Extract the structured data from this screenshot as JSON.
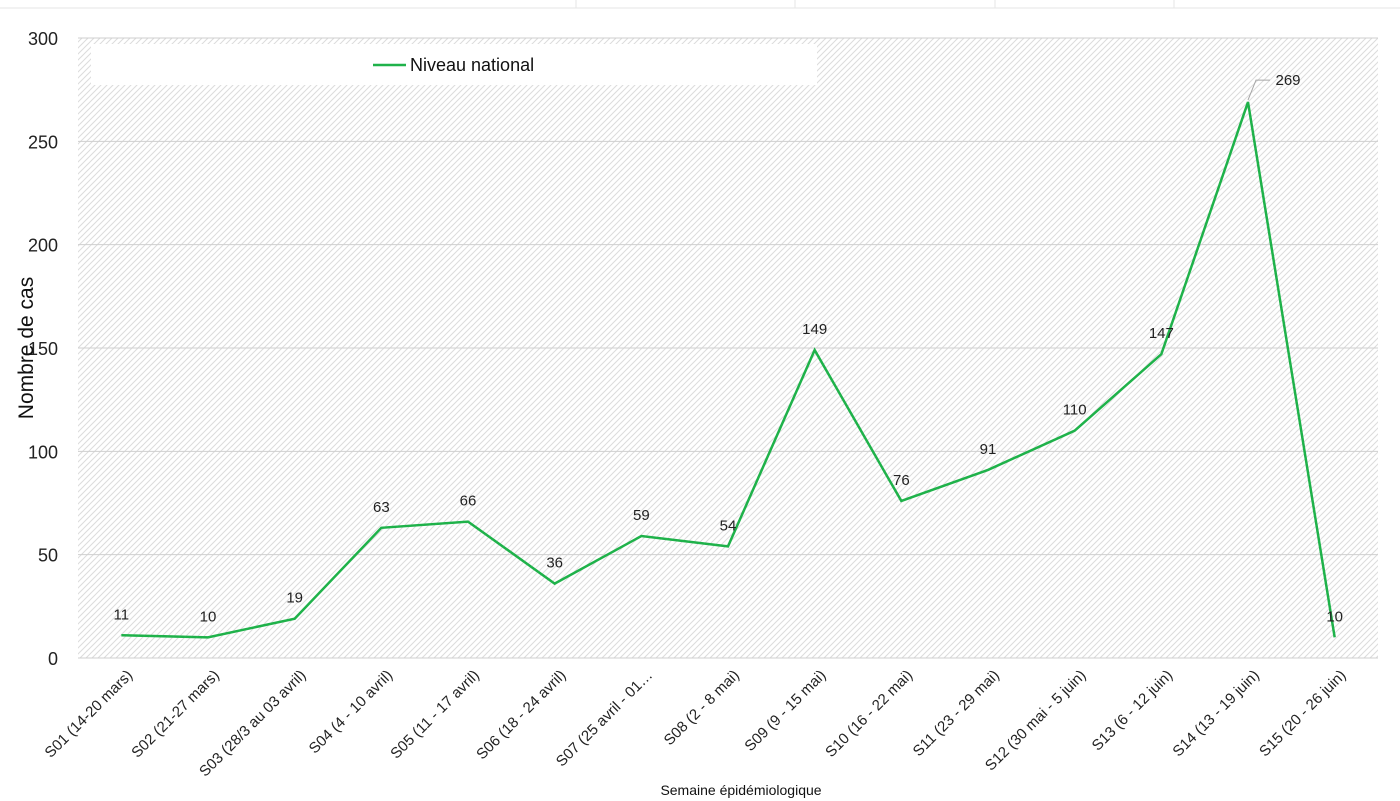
{
  "chart_data": {
    "type": "line",
    "categories": [
      "S01 (14-20 mars)",
      "S02 (21-27 mars)",
      "S03 (28/3 au 03 avril)",
      "S04 (4 - 10 avril)",
      "S05 (11 - 17 avril)",
      "S06 (18 - 24 avril)",
      "S07 (25 avril - 01…",
      "S08 (2 - 8 mai)",
      "S09 (9 - 15 mai)",
      "S10 (16 - 22 mai)",
      "S11 (23 - 29 mai)",
      "S12 (30 mai - 5 juin)",
      "S13 (6 - 12 juin)",
      "S14 (13 - 19 juin)",
      "S15 (20 - 26 juin)"
    ],
    "series": [
      {
        "name": "Niveau national",
        "color": "#1fb24a",
        "values": [
          11,
          10,
          19,
          63,
          66,
          36,
          59,
          54,
          149,
          76,
          91,
          110,
          147,
          269,
          10
        ]
      }
    ],
    "xlabel": "Semaine épidémiologique",
    "ylabel": "Nombre de cas",
    "ylim": [
      0,
      300
    ],
    "yticks": [
      0,
      50,
      100,
      150,
      200,
      250,
      300
    ],
    "grid": true,
    "legend_position": "top",
    "data_labels": true
  }
}
